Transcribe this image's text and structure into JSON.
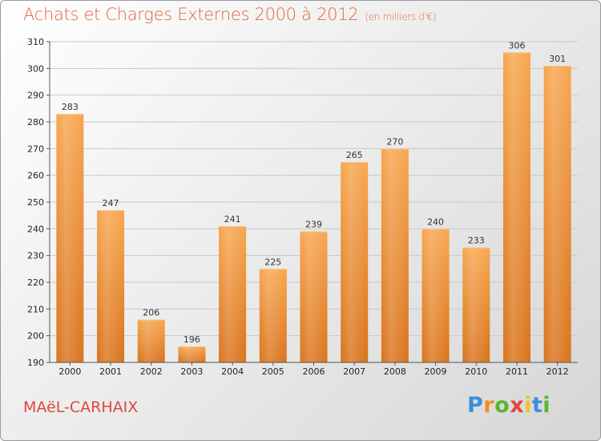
{
  "header": {
    "title": "Achats et Charges Externes 2000 à 2012",
    "subtitle": "(en milliers d'€)"
  },
  "footer": {
    "commune": "MAëL-CARHAIX",
    "logo": {
      "letters": [
        "P",
        "r",
        "o",
        "x",
        "i",
        "t",
        "i"
      ],
      "colors": [
        "#3a8fd8",
        "#f08c1e",
        "#5cb531",
        "#e2453b",
        "#f2c12e",
        "#3a8fd8",
        "#5cb531"
      ]
    }
  },
  "chart_data": {
    "type": "bar",
    "title": "Achats et Charges Externes 2000 à 2012",
    "subtitle": "(en milliers d'€)",
    "categories": [
      "2000",
      "2001",
      "2002",
      "2003",
      "2004",
      "2005",
      "2006",
      "2007",
      "2008",
      "2009",
      "2010",
      "2011",
      "2012"
    ],
    "values": [
      283,
      247,
      206,
      196,
      241,
      225,
      239,
      265,
      270,
      240,
      233,
      306,
      301
    ],
    "ylim": [
      190,
      310
    ],
    "yticks": [
      190,
      200,
      210,
      220,
      230,
      240,
      250,
      260,
      270,
      280,
      290,
      300,
      310
    ],
    "grid": true,
    "bar_color_top": "#f7a64f",
    "bar_color_bottom": "#d9731c"
  }
}
